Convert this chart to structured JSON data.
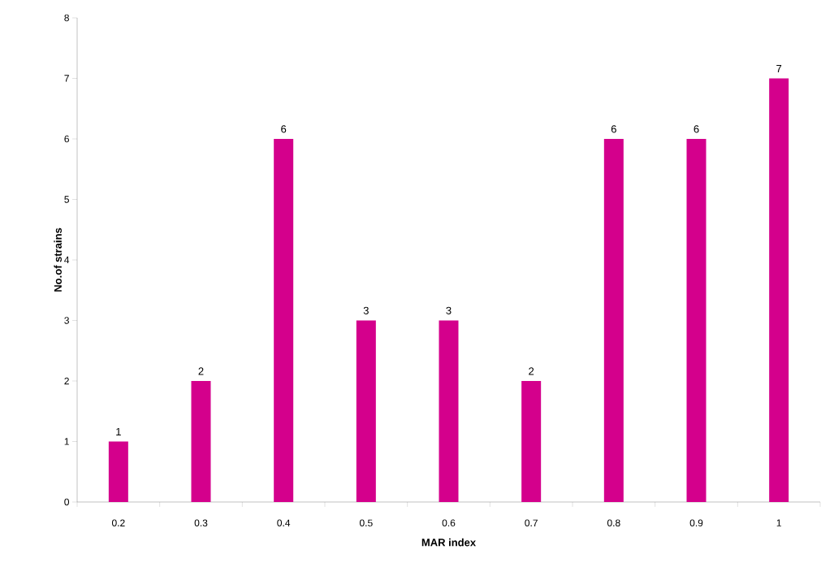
{
  "chart_data": {
    "type": "bar",
    "xlabel": "MAR index",
    "ylabel": "No.of strains",
    "categories": [
      "0.2",
      "0.3",
      "0.4",
      "0.5",
      "0.6",
      "0.7",
      "0.8",
      "0.9",
      "1"
    ],
    "values": [
      1,
      2,
      6,
      3,
      3,
      2,
      6,
      6,
      7
    ],
    "color": "#d4008c",
    "ylim": [
      0,
      8
    ],
    "yticks": [
      0,
      1,
      2,
      3,
      4,
      5,
      6,
      7,
      8
    ],
    "data_labels": true
  }
}
